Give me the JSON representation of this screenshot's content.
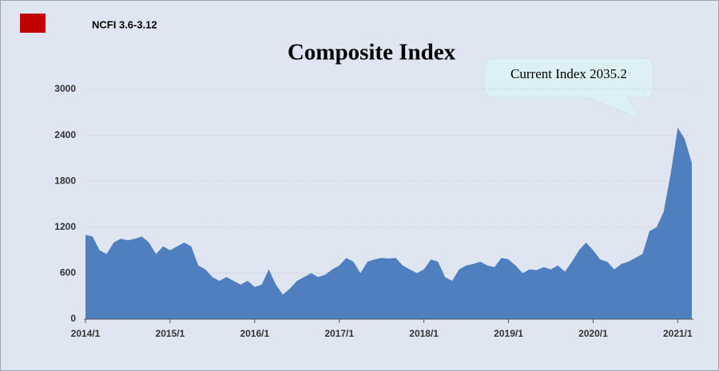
{
  "chart_data": {
    "type": "area",
    "title": "Composite Index",
    "annotation": "Current Index 2035.2",
    "legend_marker_color": "#c00000",
    "categories": [
      "2014/1",
      "2014/2",
      "2014/3",
      "2014/4",
      "2014/5",
      "2014/6",
      "2014/7",
      "2014/8",
      "2014/9",
      "2014/10",
      "2014/11",
      "2014/12",
      "2015/1",
      "2015/2",
      "2015/3",
      "2015/4",
      "2015/5",
      "2015/6",
      "2015/7",
      "2015/8",
      "2015/9",
      "2015/10",
      "2015/11",
      "2015/12",
      "2016/1",
      "2016/2",
      "2016/3",
      "2016/4",
      "2016/5",
      "2016/6",
      "2016/7",
      "2016/8",
      "2016/9",
      "2016/10",
      "2016/11",
      "2016/12",
      "2017/1",
      "2017/2",
      "2017/3",
      "2017/4",
      "2017/5",
      "2017/6",
      "2017/7",
      "2017/8",
      "2017/9",
      "2017/10",
      "2017/11",
      "2017/12",
      "2018/1",
      "2018/2",
      "2018/3",
      "2018/4",
      "2018/5",
      "2018/6",
      "2018/7",
      "2018/8",
      "2018/9",
      "2018/10",
      "2018/11",
      "2018/12",
      "2019/1",
      "2019/2",
      "2019/3",
      "2019/4",
      "2019/5",
      "2019/6",
      "2019/7",
      "2019/8",
      "2019/9",
      "2019/10",
      "2019/11",
      "2019/12",
      "2020/1",
      "2020/2",
      "2020/3",
      "2020/4",
      "2020/5",
      "2020/6",
      "2020/7",
      "2020/8",
      "2020/9",
      "2020/10",
      "2020/11",
      "2020/12",
      "2021/1",
      "2021/2",
      "2021/3"
    ],
    "series": [
      {
        "name": "NCFI 3.6-3.12",
        "color": "#4f7fbf",
        "values": [
          1100,
          1080,
          900,
          850,
          1000,
          1050,
          1030,
          1050,
          1080,
          1000,
          850,
          950,
          900,
          950,
          1000,
          950,
          700,
          650,
          550,
          500,
          550,
          500,
          450,
          500,
          420,
          450,
          650,
          450,
          320,
          400,
          500,
          550,
          600,
          550,
          580,
          650,
          700,
          800,
          750,
          600,
          750,
          780,
          800,
          790,
          800,
          700,
          650,
          600,
          650,
          780,
          750,
          550,
          500,
          650,
          700,
          720,
          750,
          700,
          680,
          800,
          780,
          700,
          600,
          650,
          640,
          680,
          650,
          700,
          620,
          750,
          900,
          1000,
          900,
          780,
          750,
          650,
          720,
          750,
          800,
          850,
          1150,
          1200,
          1400,
          1900,
          2500,
          2350,
          2035.2
        ]
      }
    ],
    "xticks": [
      "2014/1",
      "2015/1",
      "2016/1",
      "2017/1",
      "2018/1",
      "2019/1",
      "2020/1",
      "2021/1"
    ],
    "ylim": [
      0,
      3000
    ],
    "yticks": [
      0,
      600,
      1200,
      1800,
      2400,
      3000
    ],
    "grid": true
  }
}
